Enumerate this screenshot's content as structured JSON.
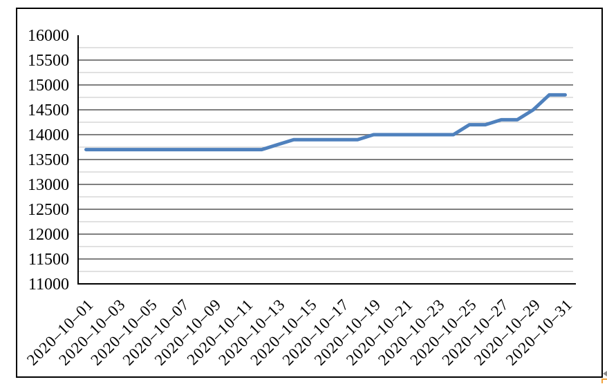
{
  "chart_data": {
    "type": "line",
    "title": "",
    "xlabel": "",
    "ylabel": "",
    "legend": false,
    "grid": true,
    "ylim": [
      11000,
      16000
    ],
    "y_major_step": 500,
    "y_minor_step": 250,
    "y_tick_labels": [
      16000,
      15500,
      15000,
      14500,
      14000,
      13500,
      13000,
      12500,
      12000,
      11500,
      11000
    ],
    "categories": [
      "2020-10-01",
      "2020-10-02",
      "2020-10-03",
      "2020-10-04",
      "2020-10-05",
      "2020-10-06",
      "2020-10-07",
      "2020-10-08",
      "2020-10-09",
      "2020-10-10",
      "2020-10-11",
      "2020-10-12",
      "2020-10-13",
      "2020-10-14",
      "2020-10-15",
      "2020-10-16",
      "2020-10-17",
      "2020-10-18",
      "2020-10-19",
      "2020-10-20",
      "2020-10-21",
      "2020-10-22",
      "2020-10-23",
      "2020-10-24",
      "2020-10-25",
      "2020-10-26",
      "2020-10-27",
      "2020-10-28",
      "2020-10-29",
      "2020-10-30",
      "2020-10-31"
    ],
    "values": [
      13700,
      13700,
      13700,
      13700,
      13700,
      13700,
      13700,
      13700,
      13700,
      13700,
      13700,
      13700,
      13800,
      13900,
      13900,
      13900,
      13900,
      13900,
      14000,
      14000,
      14000,
      14000,
      14000,
      14000,
      14200,
      14200,
      14300,
      14300,
      14500,
      14800,
      14800
    ],
    "x_tick_labels": [
      "2020-10-01",
      "2020-10-03",
      "2020-10-05",
      "2020-10-07",
      "2020-10-09",
      "2020-10-11",
      "2020-10-13",
      "2020-10-15",
      "2020-10-17",
      "2020-10-19",
      "2020-10-21",
      "2020-10-23",
      "2020-10-25",
      "2020-10-27",
      "2020-10-29",
      "2020-10-31"
    ],
    "colors": {
      "line": "#4F81BD",
      "major_grid": "#7F7F7F",
      "minor_grid": "#C3C3C3",
      "axis": "#000000"
    }
  },
  "icons": {
    "scroll_arrow": "left-triangle",
    "cell_marker": "orange-corner-bracket"
  }
}
